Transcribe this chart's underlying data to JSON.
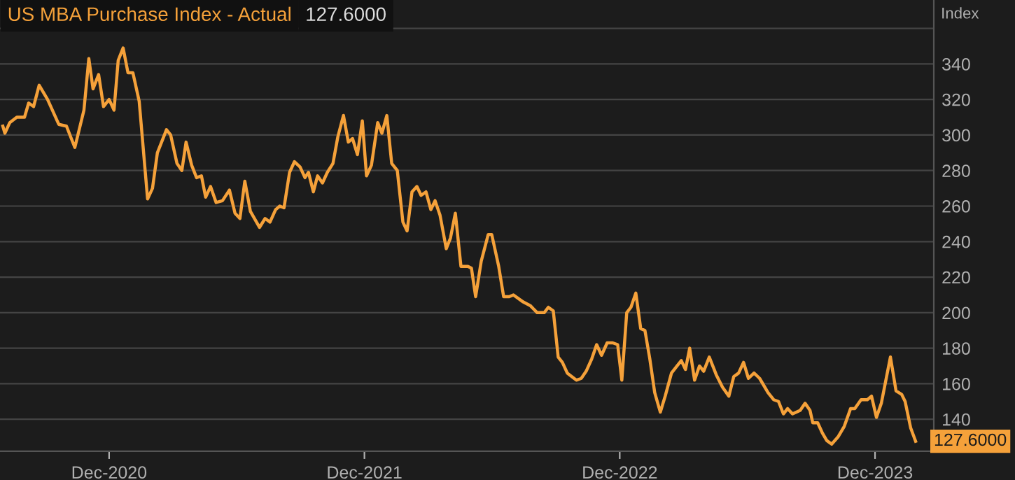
{
  "chart_data": {
    "type": "line",
    "title": "US MBA Purchase Index - Actual",
    "ylabel": "Index",
    "annotations": [
      "127.6000",
      {
        "text": "127.6000",
        "x": "2024-01-28",
        "y": 127.6
      }
    ],
    "x": [
      "2020-07-02",
      "2020-07-05",
      "2020-07-12",
      "2020-07-22",
      "2020-08-02",
      "2020-08-08",
      "2020-08-15",
      "2020-08-23",
      "2020-09-04",
      "2020-09-20",
      "2020-10-01",
      "2020-10-13",
      "2020-10-26",
      "2020-11-02",
      "2020-11-08",
      "2020-11-16",
      "2020-11-23",
      "2020-12-01",
      "2020-12-08",
      "2020-12-14",
      "2020-12-21",
      "2020-12-28",
      "2021-01-04",
      "2021-01-13",
      "2021-01-25",
      "2021-02-01",
      "2021-02-08",
      "2021-02-21",
      "2021-02-27",
      "2021-03-08",
      "2021-03-15",
      "2021-03-21",
      "2021-03-29",
      "2021-04-05",
      "2021-04-12",
      "2021-04-18",
      "2021-04-25",
      "2021-05-03",
      "2021-05-12",
      "2021-05-22",
      "2021-05-30",
      "2021-06-06",
      "2021-06-13",
      "2021-06-21",
      "2021-07-04",
      "2021-07-12",
      "2021-07-19",
      "2021-07-27",
      "2021-08-02",
      "2021-08-08",
      "2021-08-16",
      "2021-08-23",
      "2021-08-31",
      "2021-09-07",
      "2021-09-12",
      "2021-09-19",
      "2021-09-25",
      "2021-10-02",
      "2021-10-09",
      "2021-10-17",
      "2021-10-24",
      "2021-11-01",
      "2021-11-08",
      "2021-11-14",
      "2021-11-21",
      "2021-11-28",
      "2021-12-04",
      "2021-12-11",
      "2021-12-20",
      "2021-12-26",
      "2022-01-02",
      "2022-01-09",
      "2022-01-17",
      "2022-01-25",
      "2022-01-31",
      "2022-02-07",
      "2022-02-14",
      "2022-02-20",
      "2022-02-27",
      "2022-03-06",
      "2022-03-12",
      "2022-03-19",
      "2022-03-28",
      "2022-04-03",
      "2022-04-10",
      "2022-04-18",
      "2022-04-28",
      "2022-05-03",
      "2022-05-09",
      "2022-05-17",
      "2022-05-27",
      "2022-06-01",
      "2022-06-11",
      "2022-06-18",
      "2022-06-26",
      "2022-07-02",
      "2022-07-16",
      "2022-07-26",
      "2022-08-05",
      "2022-08-15",
      "2022-08-21",
      "2022-08-28",
      "2022-09-04",
      "2022-09-10",
      "2022-09-17",
      "2022-09-30",
      "2022-10-07",
      "2022-10-14",
      "2022-10-22",
      "2022-10-29",
      "2022-11-05",
      "2022-11-13",
      "2022-11-21",
      "2022-11-28",
      "2022-12-04",
      "2022-12-11",
      "2022-12-17",
      "2022-12-24",
      "2022-12-31",
      "2023-01-06",
      "2023-01-13",
      "2023-01-20",
      "2023-01-28",
      "2023-02-04",
      "2023-02-13",
      "2023-02-21",
      "2023-02-27",
      "2023-03-05",
      "2023-03-11",
      "2023-03-18",
      "2023-03-25",
      "2023-03-31",
      "2023-04-08",
      "2023-04-18",
      "2023-04-27",
      "2023-05-06",
      "2023-05-13",
      "2023-05-20",
      "2023-05-27",
      "2023-06-03",
      "2023-06-11",
      "2023-06-19",
      "2023-07-01",
      "2023-07-09",
      "2023-07-16",
      "2023-07-23",
      "2023-07-29",
      "2023-08-05",
      "2023-08-16",
      "2023-08-23",
      "2023-08-30",
      "2023-09-03",
      "2023-09-10",
      "2023-09-17",
      "2023-09-23",
      "2023-09-30",
      "2023-10-09",
      "2023-10-18",
      "2023-10-27",
      "2023-11-02",
      "2023-11-11",
      "2023-11-20",
      "2023-11-26",
      "2023-12-03",
      "2023-12-10",
      "2023-12-23",
      "2023-12-31",
      "2024-01-08",
      "2024-01-13",
      "2024-01-21",
      "2024-01-28"
    ],
    "series": [
      {
        "color": "#f5a13a",
        "values": [
          305,
          301,
          307,
          310,
          310,
          318,
          316,
          328,
          320,
          306,
          305,
          293,
          314,
          343,
          326,
          334,
          316,
          320,
          314,
          342,
          349,
          335,
          335,
          319,
          264,
          270,
          290,
          303,
          300,
          284,
          280,
          296,
          283,
          276,
          277,
          265,
          271,
          262,
          263,
          269,
          256,
          253,
          274,
          257,
          248,
          253,
          251,
          258,
          260,
          259,
          279,
          285,
          282,
          276,
          279,
          268,
          277,
          273,
          279,
          284,
          299,
          311,
          296,
          298,
          289,
          308,
          277,
          283,
          307,
          301,
          311,
          284,
          280,
          251,
          246,
          268,
          271,
          266,
          268,
          258,
          263,
          255,
          236,
          242,
          256,
          226,
          226,
          225,
          209,
          229,
          244,
          244,
          226,
          209,
          209,
          210,
          206,
          204,
          200,
          200,
          203,
          201,
          175,
          172,
          166,
          162,
          163,
          167,
          174,
          182,
          176,
          183,
          183,
          182,
          162,
          200,
          203,
          211,
          191,
          190,
          174,
          155,
          144,
          153,
          166,
          170,
          173,
          168,
          180,
          162,
          170,
          167,
          175,
          165,
          158,
          153,
          164,
          166,
          172,
          163,
          166,
          163,
          155,
          151,
          150,
          143,
          146,
          143,
          145,
          149,
          145,
          138,
          138,
          132,
          128,
          126,
          130,
          136,
          146,
          146,
          151,
          151,
          153,
          141,
          149,
          175,
          156,
          154,
          150,
          135,
          127.6
        ]
      }
    ],
    "xlim": [
      "2020-06-28",
      "2024-02-23"
    ],
    "xticks": [
      {
        "value": "2020-12-01",
        "label": "Dec-2020"
      },
      {
        "value": "2021-12-01",
        "label": "Dec-2021"
      },
      {
        "value": "2022-12-01",
        "label": "Dec-2022"
      },
      {
        "value": "2023-12-01",
        "label": "Dec-2023"
      }
    ],
    "ylim": [
      122,
      376
    ],
    "yticks": [
      140,
      160,
      180,
      200,
      220,
      240,
      260,
      280,
      300,
      320,
      340,
      {
        "value": 360,
        "label": null
      }
    ],
    "grid": "y",
    "legend": false,
    "marker": "none",
    "line_style": "solid"
  }
}
